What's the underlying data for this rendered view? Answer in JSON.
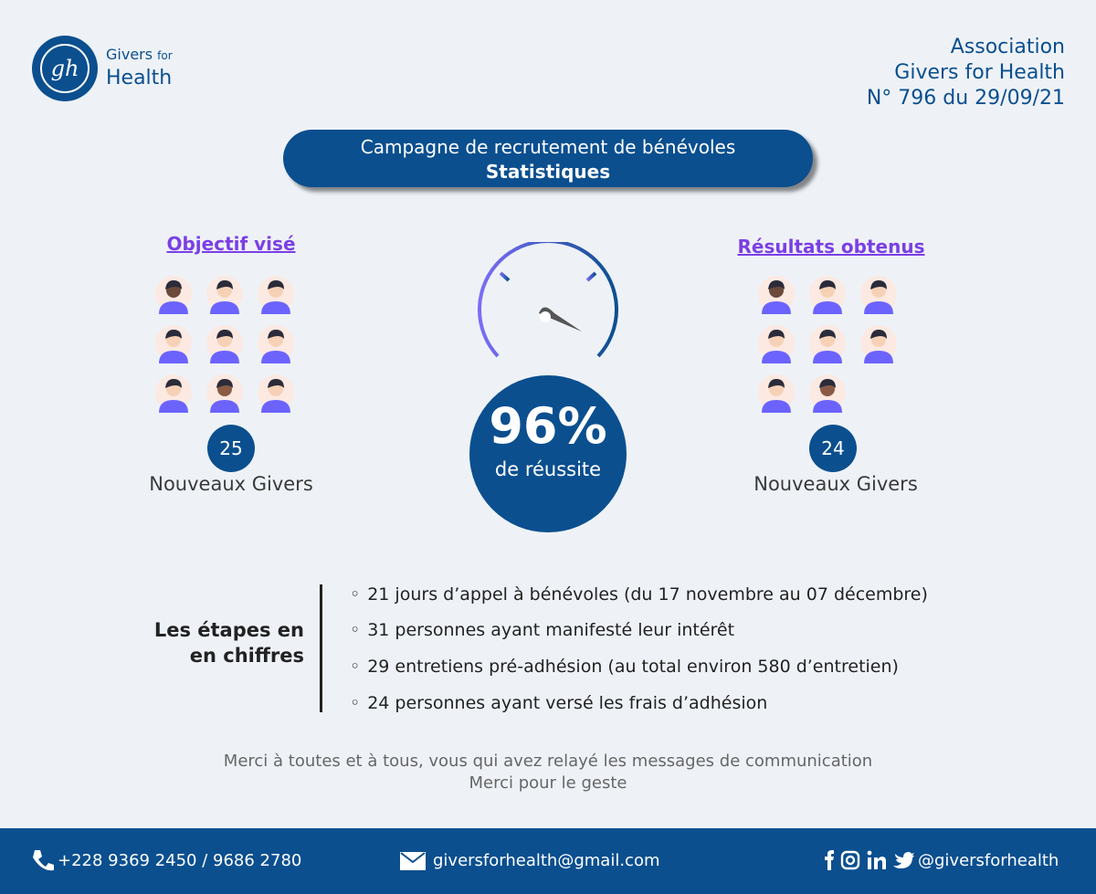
{
  "header": {
    "logo": {
      "monogram": "gh",
      "line1": "Givers",
      "line1_small": "for",
      "line2": "Health"
    },
    "org": [
      "Association",
      "Givers for Health",
      "N° 796 du 29/09/21"
    ]
  },
  "banner": {
    "title": "Campagne de recrutement de bénévoles",
    "subtitle": "Statistiques"
  },
  "target": {
    "heading": "Objectif visé",
    "count": "25",
    "label": "Nouveaux Givers"
  },
  "result": {
    "heading": "Résultats obtenus",
    "count": "24",
    "label": "Nouveaux Givers"
  },
  "success": {
    "rate": "96%",
    "label": "de réussite"
  },
  "steps": {
    "heading": [
      "Les étapes en",
      "en chiffres"
    ],
    "items": [
      "21 jours d’appel à bénévoles (du 17 novembre au 07 décembre)",
      "31 personnes ayant manifesté leur intérêt",
      "29 entretiens pré-adhésion (au total environ 580 d’entretien)",
      "24 personnes ayant versé les frais d’adhésion"
    ]
  },
  "thanks": [
    "Merci à toutes et à tous, vous qui avez relayé les messages de communication",
    "Merci pour le geste"
  ],
  "footer": {
    "phone": "+228 9369 2450 / 9686 2780",
    "email": "giversforhealth@gmail.com",
    "social": "@giversforhealth"
  }
}
